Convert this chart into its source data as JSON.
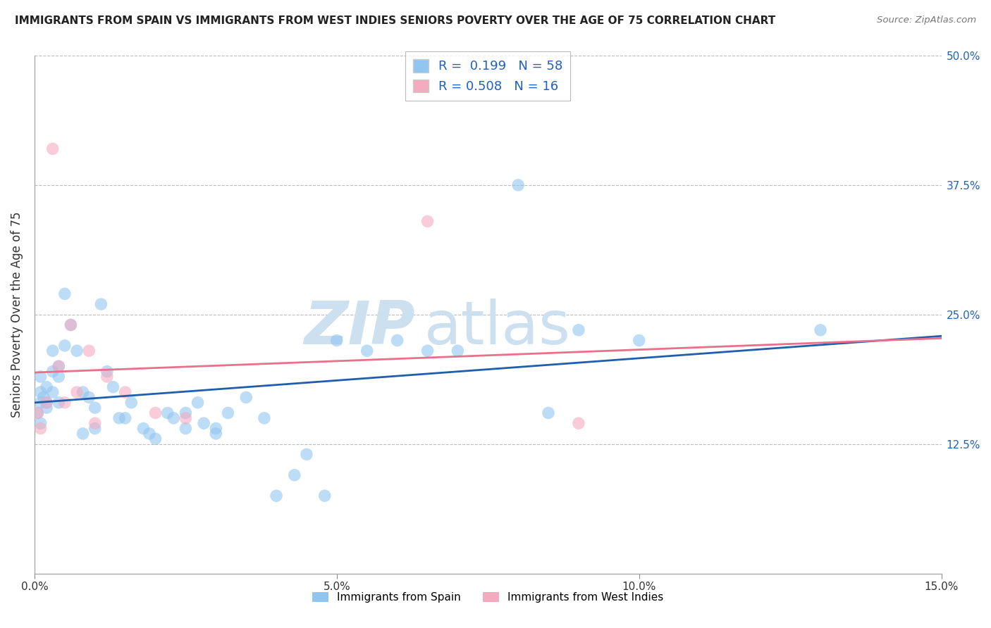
{
  "title": "IMMIGRANTS FROM SPAIN VS IMMIGRANTS FROM WEST INDIES SENIORS POVERTY OVER THE AGE OF 75 CORRELATION CHART",
  "source": "Source: ZipAtlas.com",
  "ylabel": "Seniors Poverty Over the Age of 75",
  "xlim": [
    0.0,
    0.15
  ],
  "ylim": [
    0.0,
    0.5
  ],
  "xticks": [
    0.0,
    0.05,
    0.1,
    0.15
  ],
  "xticklabels": [
    "0.0%",
    "5.0%",
    "10.0%",
    "15.0%"
  ],
  "yticks": [
    0.0,
    0.125,
    0.25,
    0.375,
    0.5
  ],
  "yticklabels": [
    "",
    "12.5%",
    "25.0%",
    "37.5%",
    "50.0%"
  ],
  "R_spain": 0.199,
  "N_spain": 58,
  "R_wi": 0.508,
  "N_wi": 16,
  "color_spain": "#92C5F0",
  "color_wi": "#F4AABF",
  "line_color_spain": "#1F5FAD",
  "line_color_wi": "#E8708A",
  "spain_x": [
    0.0005,
    0.001,
    0.001,
    0.001,
    0.001,
    0.0015,
    0.002,
    0.002,
    0.002,
    0.003,
    0.003,
    0.003,
    0.004,
    0.004,
    0.004,
    0.005,
    0.005,
    0.006,
    0.007,
    0.008,
    0.008,
    0.009,
    0.01,
    0.01,
    0.011,
    0.012,
    0.013,
    0.014,
    0.015,
    0.016,
    0.018,
    0.019,
    0.02,
    0.022,
    0.023,
    0.025,
    0.025,
    0.027,
    0.028,
    0.03,
    0.03,
    0.032,
    0.035,
    0.038,
    0.04,
    0.043,
    0.045,
    0.048,
    0.05,
    0.055,
    0.06,
    0.065,
    0.07,
    0.08,
    0.085,
    0.09,
    0.1,
    0.13
  ],
  "spain_y": [
    0.155,
    0.145,
    0.165,
    0.175,
    0.19,
    0.17,
    0.16,
    0.18,
    0.165,
    0.195,
    0.215,
    0.175,
    0.165,
    0.2,
    0.19,
    0.22,
    0.27,
    0.24,
    0.215,
    0.135,
    0.175,
    0.17,
    0.16,
    0.14,
    0.26,
    0.195,
    0.18,
    0.15,
    0.15,
    0.165,
    0.14,
    0.135,
    0.13,
    0.155,
    0.15,
    0.155,
    0.14,
    0.165,
    0.145,
    0.14,
    0.135,
    0.155,
    0.17,
    0.15,
    0.075,
    0.095,
    0.115,
    0.075,
    0.225,
    0.215,
    0.225,
    0.215,
    0.215,
    0.375,
    0.155,
    0.235,
    0.225,
    0.235
  ],
  "wi_x": [
    0.0005,
    0.001,
    0.002,
    0.003,
    0.004,
    0.005,
    0.006,
    0.007,
    0.009,
    0.01,
    0.012,
    0.015,
    0.02,
    0.025,
    0.065,
    0.09
  ],
  "wi_y": [
    0.155,
    0.14,
    0.165,
    0.41,
    0.2,
    0.165,
    0.24,
    0.175,
    0.215,
    0.145,
    0.19,
    0.175,
    0.155,
    0.15,
    0.34,
    0.145
  ]
}
